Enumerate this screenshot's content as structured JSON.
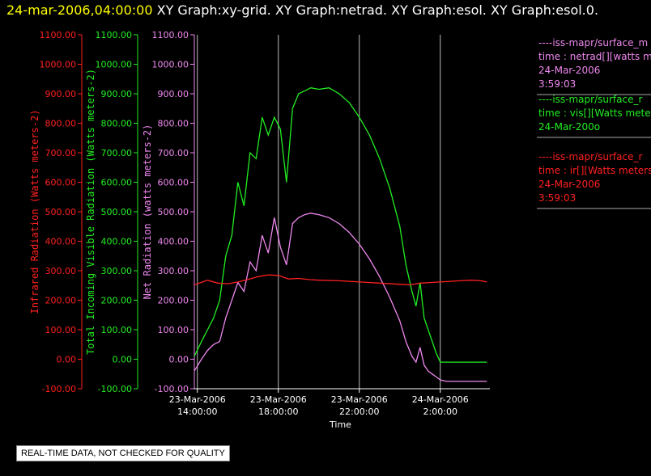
{
  "header": {
    "timestamp": "24-mar-2006,04:00:00",
    "graphs": "XY Graph:xy-grid.  XY Graph:netrad.  XY Graph:esol.  XY Graph:esol.0."
  },
  "notice": "REAL-TIME DATA, NOT CHECKED FOR QUALITY",
  "colors": {
    "red": "#ff2020",
    "green": "#22ee22",
    "violet": "#ee88ee",
    "grid": "#bbbbbb",
    "axis": "#ffffff"
  },
  "chart_data": {
    "type": "line",
    "xlabel": "Time",
    "x_ticks": [
      {
        "line1": "23-Mar-2006",
        "line2": "14:00:00"
      },
      {
        "line1": "23-Mar-2006",
        "line2": "18:00:00"
      },
      {
        "line1": "23-Mar-2006",
        "line2": "22:00:00"
      },
      {
        "line1": "24-Mar-2006",
        "line2": "2:00:00"
      }
    ],
    "x_tick_values": [
      14,
      18,
      22,
      26
    ],
    "xlim": [
      13.85,
      28.45
    ],
    "ylim": [
      -100,
      1100
    ],
    "y_ticks": [
      -100,
      0,
      100,
      200,
      300,
      400,
      500,
      600,
      700,
      800,
      900,
      1000,
      1100
    ],
    "y_tick_labels": [
      "-100.00",
      "0.00",
      "100.00",
      "200.00",
      "300.00",
      "400.00",
      "500.00",
      "600.00",
      "700.00",
      "800.00",
      "900.00",
      "1000.00",
      "1100.00"
    ],
    "axes": [
      {
        "label": "Infrared Radiation (Watts meters-2)",
        "color": "#ff2020"
      },
      {
        "label": "Total Incoming Visible Radiation (Watts meters-2)",
        "color": "#22ee22"
      },
      {
        "label": "Net Radiation (watts meters-2)",
        "color": "#ee88ee"
      }
    ],
    "series": [
      {
        "axis": 1,
        "color": "#22ee22",
        "x": [
          13.85,
          14.2,
          14.5,
          14.8,
          15.1,
          15.4,
          15.7,
          16.0,
          16.3,
          16.6,
          16.9,
          17.2,
          17.5,
          17.8,
          18.1,
          18.4,
          18.7,
          19.0,
          19.3,
          19.6,
          20.0,
          20.5,
          21.0,
          21.5,
          22.0,
          22.5,
          23.0,
          23.5,
          24.0,
          24.3,
          24.6,
          24.8,
          25.0,
          25.2,
          25.4,
          25.6,
          25.8,
          26.0,
          26.3,
          26.6,
          27.0,
          27.5,
          28.0,
          28.3
        ],
        "y": [
          10,
          60,
          100,
          140,
          200,
          350,
          420,
          600,
          520,
          700,
          680,
          820,
          760,
          820,
          780,
          600,
          850,
          900,
          910,
          920,
          915,
          920,
          900,
          870,
          820,
          760,
          680,
          580,
          450,
          320,
          230,
          180,
          260,
          140,
          100,
          60,
          20,
          -10,
          -10,
          -10,
          -10,
          -10,
          -10,
          -10
        ]
      },
      {
        "axis": 2,
        "color": "#ee88ee",
        "x": [
          13.85,
          14.2,
          14.5,
          14.8,
          15.1,
          15.4,
          15.7,
          16.0,
          16.3,
          16.6,
          16.9,
          17.2,
          17.5,
          17.8,
          18.1,
          18.4,
          18.7,
          19.0,
          19.3,
          19.6,
          20.0,
          20.5,
          21.0,
          21.5,
          22.0,
          22.5,
          23.0,
          23.5,
          24.0,
          24.3,
          24.6,
          24.8,
          25.0,
          25.2,
          25.4,
          25.6,
          25.8,
          26.0,
          26.3,
          26.6,
          27.0,
          27.5,
          28.0,
          28.3
        ],
        "y": [
          -40,
          0,
          30,
          50,
          60,
          140,
          200,
          260,
          230,
          330,
          300,
          420,
          360,
          480,
          380,
          320,
          460,
          480,
          490,
          495,
          490,
          480,
          460,
          430,
          390,
          340,
          280,
          210,
          130,
          60,
          10,
          -10,
          40,
          -20,
          -40,
          -50,
          -60,
          -70,
          -75,
          -75,
          -75,
          -75,
          -75,
          -75
        ]
      },
      {
        "axis": 0,
        "color": "#ff2020",
        "x": [
          13.85,
          14.5,
          15.0,
          15.5,
          16.0,
          16.5,
          17.0,
          17.5,
          18.0,
          18.5,
          19.0,
          19.5,
          20.0,
          21.0,
          22.0,
          23.0,
          24.0,
          24.5,
          25.0,
          25.5,
          26.0,
          26.5,
          27.0,
          27.5,
          28.0,
          28.3
        ],
        "y": [
          252,
          268,
          258,
          256,
          262,
          270,
          280,
          286,
          284,
          272,
          274,
          270,
          268,
          266,
          262,
          258,
          254,
          252,
          258,
          260,
          262,
          264,
          266,
          268,
          266,
          262
        ]
      }
    ]
  },
  "legend": [
    {
      "color": "#ee88ee",
      "lines": [
        "----iss-mapr/surface_m",
        "time : netrad[][watts m",
        "24-Mar-2006",
        "3:59:03"
      ]
    },
    {
      "color": "#22ee22",
      "lines": [
        "----iss-mapr/surface_r",
        "time : vis[][Watts mete",
        "24-Mar-200o"
      ]
    },
    {
      "color": "#ff2020",
      "lines": [
        "----iss-mapr/surface_r",
        "time : ir[][Watts meters",
        "24-Mar-2006",
        "3:59:03"
      ]
    }
  ]
}
